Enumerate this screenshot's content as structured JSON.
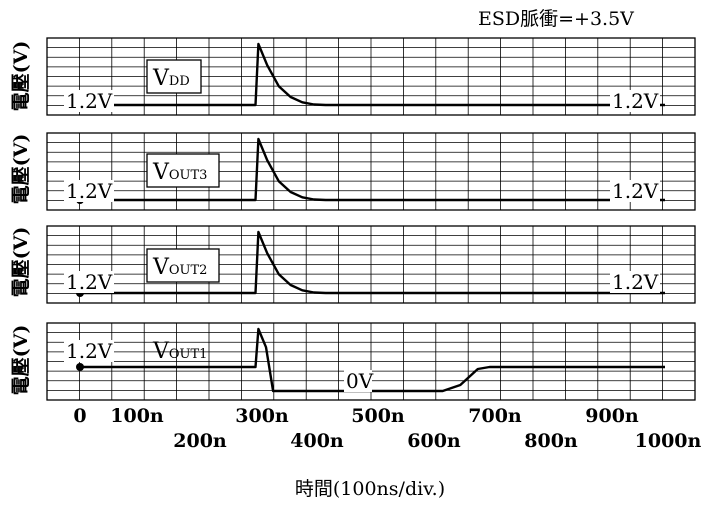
{
  "chart_data": {
    "type": "line",
    "title": "ESD脈衝=+3.5V",
    "xlabel": "時間(100ns/div.)",
    "ylabel": "電壓(V)",
    "x_ticks_upper": [
      "0",
      "100n",
      "300n",
      "500n",
      "700n",
      "900n"
    ],
    "x_ticks_lower": [
      "200n",
      "400n",
      "600n",
      "800n",
      "1000n"
    ],
    "xlim": [
      0,
      1000
    ],
    "x_unit": "ns",
    "grid": true,
    "panels": [
      {
        "series": [
          {
            "name": "VDD",
            "x": [
              0,
              300,
              305,
              320,
              340,
              360,
              380,
              400,
              420,
              1000
            ],
            "y": [
              1.2,
              1.2,
              3.5,
              2.7,
              1.9,
              1.5,
              1.3,
              1.22,
              1.2,
              1.2
            ]
          }
        ],
        "label_main": "V",
        "label_sub": "DD",
        "annotations": [
          "1.2V",
          "1.2V"
        ]
      },
      {
        "series": [
          {
            "name": "VOUT3",
            "x": [
              0,
              300,
              305,
              320,
              340,
              360,
              380,
              400,
              420,
              1000
            ],
            "y": [
              1.2,
              1.2,
              3.5,
              2.7,
              1.9,
              1.5,
              1.3,
              1.22,
              1.2,
              1.2
            ]
          }
        ],
        "label_main": "V",
        "label_sub": "OUT3",
        "annotations": [
          "1.2V",
          "1.2V"
        ]
      },
      {
        "series": [
          {
            "name": "VOUT2",
            "x": [
              0,
              300,
              305,
              320,
              340,
              360,
              380,
              400,
              420,
              1000
            ],
            "y": [
              1.2,
              1.2,
              3.5,
              2.7,
              1.9,
              1.5,
              1.3,
              1.22,
              1.2,
              1.2
            ]
          }
        ],
        "label_main": "V",
        "label_sub": "OUT2",
        "annotations": [
          "1.2V",
          "1.2V"
        ]
      },
      {
        "series": [
          {
            "name": "VOUT1",
            "x": [
              0,
              300,
              305,
              318,
              330,
              620,
              650,
              680,
              700,
              1000
            ],
            "y": [
              1.2,
              1.2,
              3.5,
              2.4,
              0,
              0,
              0.3,
              1.1,
              1.2,
              1.2
            ]
          }
        ],
        "label_main": "V",
        "label_sub": "OUT1",
        "annotations": [
          "1.2V",
          "0V"
        ]
      }
    ]
  }
}
